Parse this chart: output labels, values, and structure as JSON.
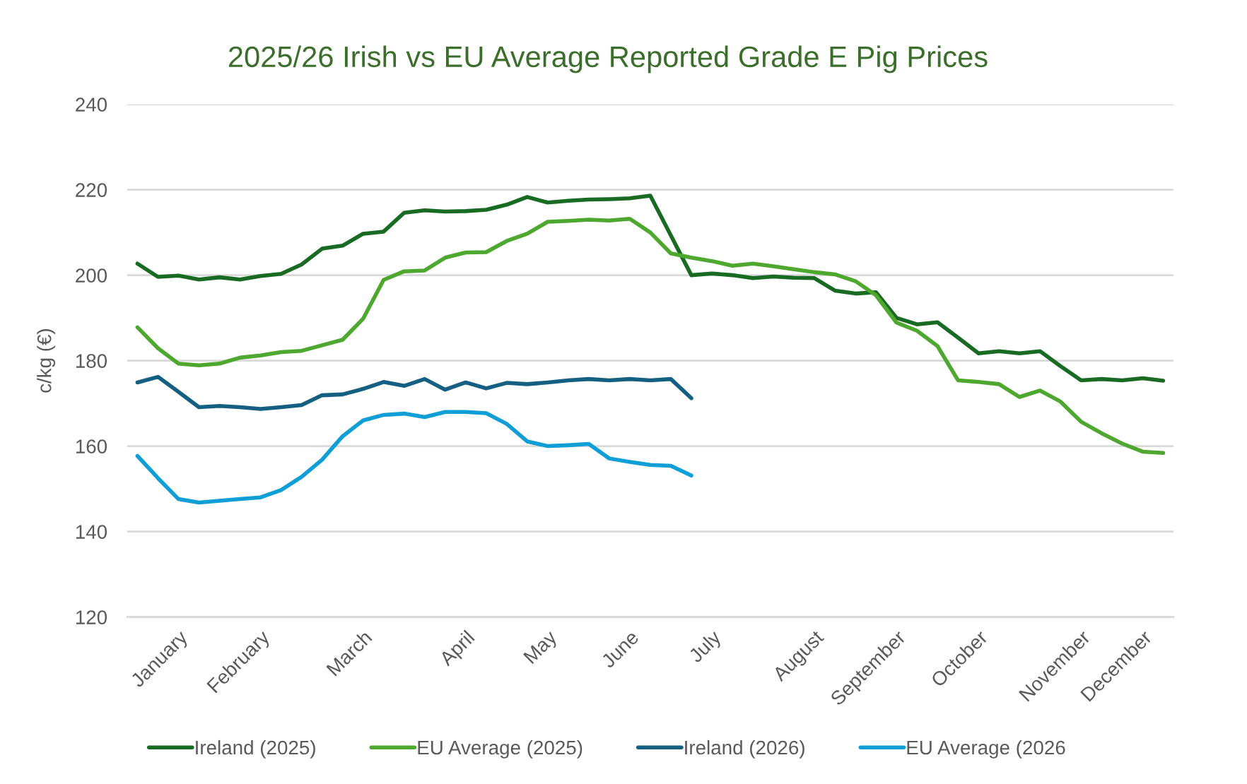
{
  "chart_data": {
    "type": "line",
    "title": "2025/26 Irish vs EU Average Reported Grade E Pig Prices",
    "ylabel": "c/kg (€)",
    "categories": [
      null,
      null,
      "January",
      null,
      null,
      null,
      "February",
      null,
      null,
      null,
      null,
      "March",
      null,
      null,
      null,
      null,
      "April",
      null,
      null,
      null,
      "May",
      null,
      null,
      null,
      "June",
      null,
      null,
      null,
      "July",
      null,
      null,
      null,
      null,
      "August",
      null,
      null,
      null,
      "September",
      null,
      null,
      null,
      "October",
      null,
      null,
      null,
      null,
      "November",
      null,
      null,
      "December",
      null
    ],
    "series": [
      {
        "name": "Ireland (2025)",
        "color": "#196b24",
        "values": [
          202.7,
          199.6,
          199.9,
          199.0,
          199.5,
          199.0,
          199.8,
          200.3,
          202.5,
          206.2,
          206.9,
          209.7,
          210.2,
          214.6,
          215.2,
          214.9,
          215.0,
          215.3,
          216.5,
          218.3,
          217.0,
          217.4,
          217.7,
          217.8,
          218.0,
          218.6,
          209.3,
          200.0,
          200.4,
          200.0,
          199.3,
          199.7,
          199.4,
          199.3,
          196.4,
          195.7,
          196.0,
          190.0,
          188.5,
          189.0,
          185.4,
          181.7,
          182.2,
          181.7,
          182.2,
          178.7,
          175.4,
          175.7,
          175.4,
          175.9,
          175.3
        ]
      },
      {
        "name": "EU Average (2025)",
        "color": "#4ea72e",
        "values": [
          187.8,
          182.9,
          179.3,
          178.9,
          179.3,
          180.7,
          181.2,
          182.0,
          182.3,
          183.6,
          184.9,
          189.8,
          198.9,
          200.9,
          201.1,
          204.1,
          205.3,
          205.4,
          208.0,
          209.7,
          212.5,
          212.7,
          213.0,
          212.8,
          213.2,
          210.0,
          205.1,
          204.1,
          203.3,
          202.2,
          202.7,
          202.1,
          201.4,
          200.7,
          200.2,
          198.6,
          195.3,
          188.9,
          187.0,
          183.4,
          175.4,
          175.0,
          174.5,
          171.5,
          173.0,
          170.4,
          165.7,
          163.0,
          160.6,
          158.7,
          158.4
        ]
      },
      {
        "name": "Ireland (2026)",
        "color": "#156082",
        "values": [
          174.9,
          176.2,
          172.7,
          169.1,
          169.4,
          169.1,
          168.7,
          169.1,
          169.6,
          171.9,
          172.1,
          173.4,
          175.0,
          174.1,
          175.7,
          173.2,
          174.9,
          173.5,
          174.8,
          174.5,
          174.9,
          175.4,
          175.7,
          175.4,
          175.7,
          175.4,
          175.7,
          171.2,
          null,
          null,
          null,
          null,
          null,
          null,
          null,
          null,
          null,
          null,
          null,
          null,
          null,
          null,
          null,
          null,
          null,
          null,
          null,
          null,
          null,
          null,
          null
        ]
      },
      {
        "name": "EU Average (2026",
        "color": "#0f9ed5",
        "values": [
          157.7,
          152.5,
          147.6,
          146.8,
          147.2,
          147.6,
          148.0,
          149.7,
          152.8,
          156.8,
          162.3,
          166.0,
          167.3,
          167.6,
          166.8,
          168.0,
          168.0,
          167.7,
          165.2,
          161.1,
          160.0,
          160.2,
          160.5,
          157.1,
          156.3,
          155.6,
          155.4,
          153.1,
          null,
          null,
          null,
          null,
          null,
          null,
          null,
          null,
          null,
          null,
          null,
          null,
          null,
          null,
          null,
          null,
          null,
          null,
          null,
          null,
          null,
          null,
          null
        ]
      }
    ],
    "ylim": [
      120,
      240
    ],
    "yticks": [
      120,
      140,
      160,
      180,
      200,
      220,
      240
    ],
    "grid": "y",
    "legend": "bottom",
    "line_style": "solid"
  }
}
